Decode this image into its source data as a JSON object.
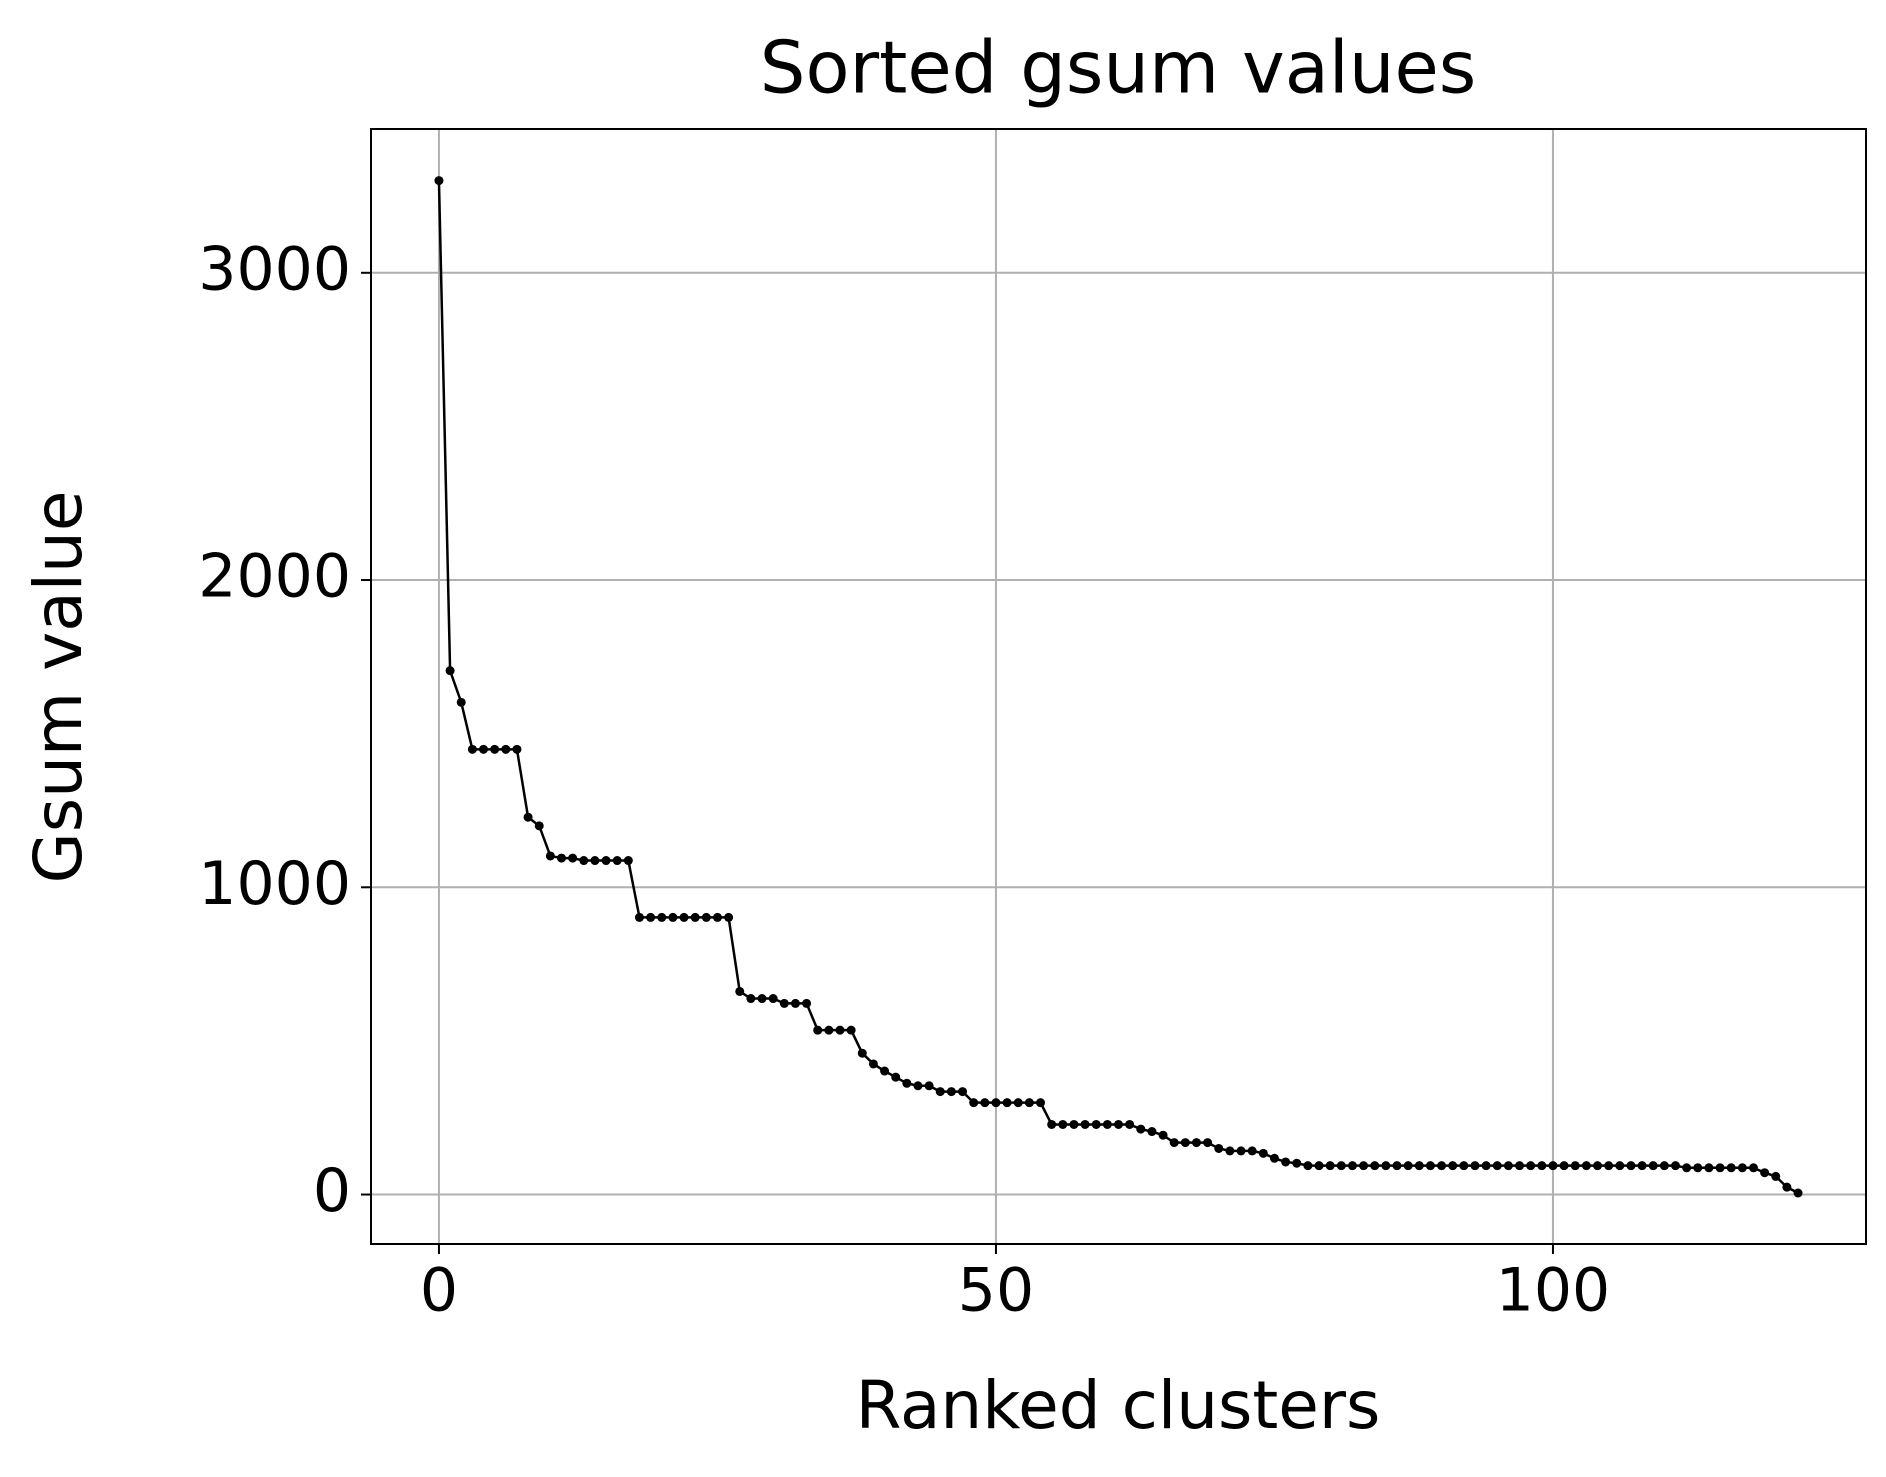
{
  "chart_data": {
    "type": "line",
    "title": "Sorted gsum values",
    "xlabel": "Ranked clusters",
    "ylabel": "Gsum value",
    "x": [
      0,
      1,
      2,
      3,
      4,
      5,
      6,
      7,
      8,
      9,
      10,
      11,
      12,
      13,
      14,
      15,
      16,
      17,
      18,
      19,
      20,
      21,
      22,
      23,
      24,
      25,
      26,
      27,
      28,
      29,
      30,
      31,
      32,
      33,
      34,
      35,
      36,
      37,
      38,
      39,
      40,
      41,
      42,
      43,
      44,
      45,
      46,
      47,
      48,
      49,
      50,
      51,
      52,
      53,
      54,
      55,
      56,
      57,
      58,
      59,
      60,
      61,
      62,
      63,
      64,
      65,
      66,
      67,
      68,
      69,
      70,
      71,
      72,
      73,
      74,
      75,
      76,
      77,
      78,
      79,
      80,
      81,
      82,
      83,
      84,
      85,
      86,
      87,
      88,
      89,
      90,
      91,
      92,
      93,
      94,
      95,
      96,
      97,
      98,
      99,
      100,
      101,
      102,
      103,
      104,
      105,
      106,
      107,
      108,
      109,
      110,
      111,
      112,
      113,
      114,
      115,
      116,
      117,
      118,
      119,
      120,
      121,
      122
    ],
    "series": [
      {
        "name": "gsum",
        "color": "#000000",
        "values": [
          3300,
          1705,
          1602,
          1449,
          1449,
          1449,
          1449,
          1449,
          1228,
          1200,
          1102,
          1095,
          1095,
          1087,
          1087,
          1087,
          1087,
          1087,
          902,
          902,
          902,
          902,
          902,
          902,
          902,
          902,
          902,
          661,
          638,
          638,
          638,
          622,
          622,
          622,
          535,
          535,
          535,
          535,
          460,
          425,
          402,
          382,
          362,
          354,
          354,
          335,
          335,
          335,
          299,
          299,
          299,
          299,
          299,
          299,
          299,
          228,
          228,
          228,
          228,
          228,
          228,
          228,
          228,
          213,
          205,
          193,
          169,
          169,
          169,
          169,
          150,
          142,
          142,
          142,
          134,
          118,
          106,
          102,
          94,
          94,
          94,
          94,
          94,
          94,
          94,
          94,
          94,
          94,
          94,
          94,
          94,
          94,
          94,
          94,
          94,
          94,
          94,
          94,
          94,
          94,
          94,
          94,
          94,
          94,
          94,
          94,
          94,
          94,
          94,
          94,
          94,
          94,
          87,
          87,
          87,
          87,
          87,
          87,
          87,
          71,
          59,
          24,
          5
        ]
      }
    ],
    "xlim": [
      -6.1,
      128.1
    ],
    "ylim": [
      -161,
      3468
    ],
    "xticks": [
      0,
      50,
      100
    ],
    "yticks": [
      0,
      1000,
      2000,
      3000
    ],
    "grid": true
  }
}
